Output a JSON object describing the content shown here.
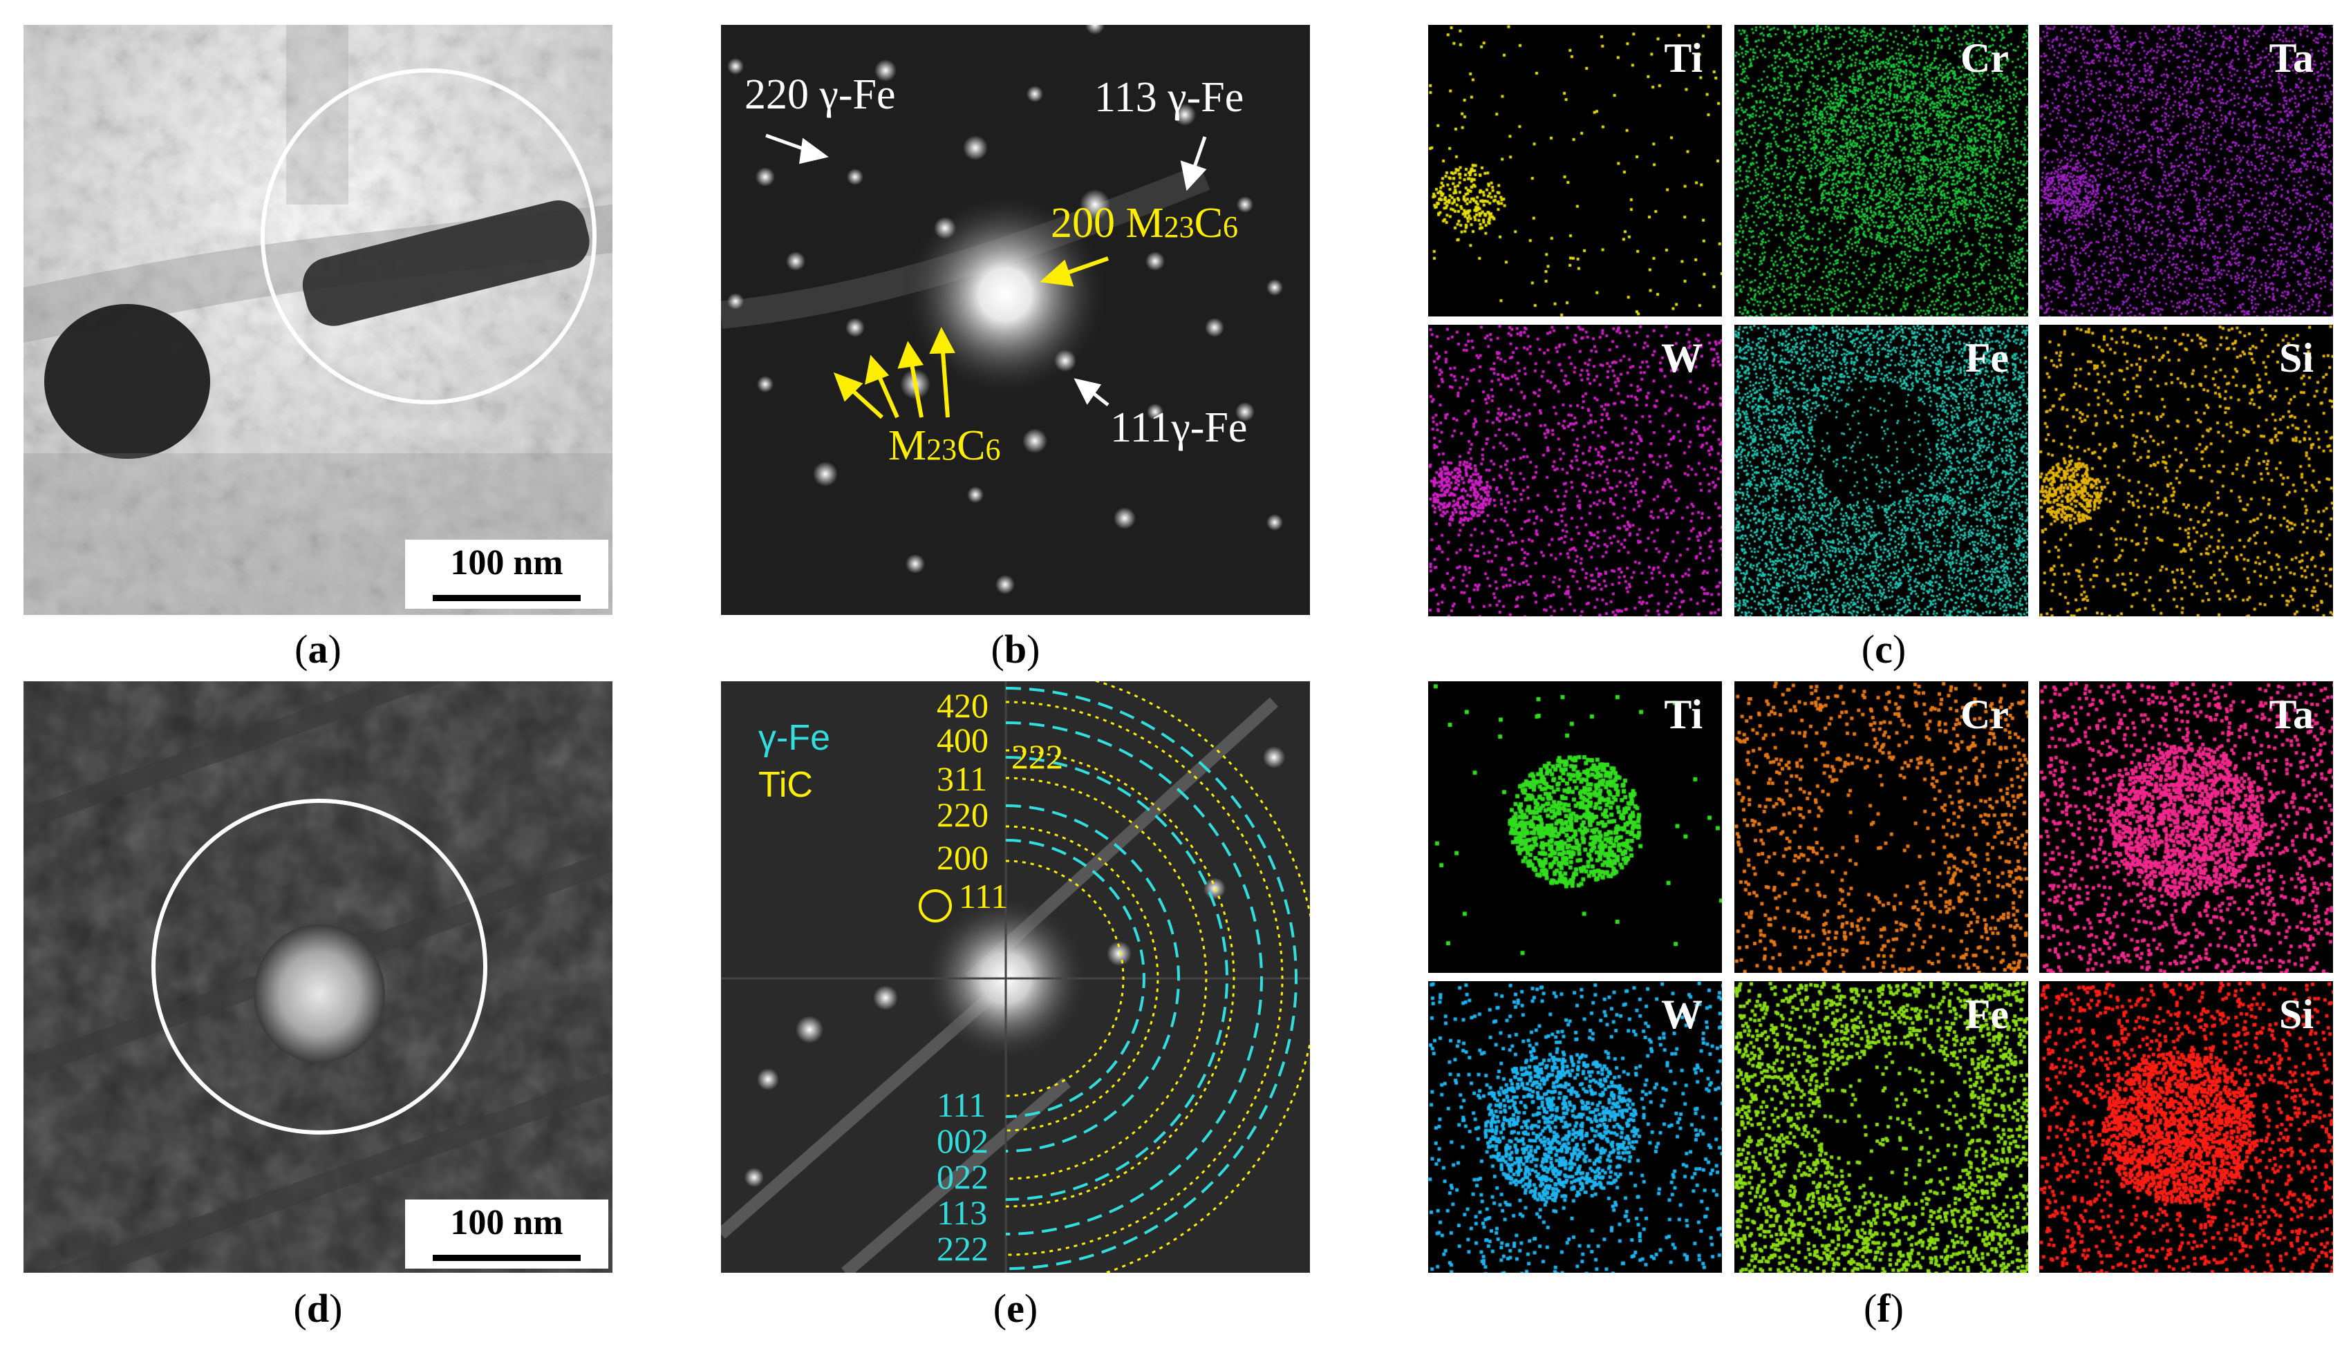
{
  "panels": {
    "a": {
      "caption": "a",
      "scale_bar": "100 nm"
    },
    "b": {
      "caption": "b",
      "labels": {
        "l220": "220 γ-Fe",
        "l113": "113 γ-Fe",
        "l200": "200",
        "l200m": "M",
        "l200s": "23",
        "l200c": "C",
        "l200s2": "6",
        "l111": "111γ-Fe",
        "lmm": "M",
        "lms": "23",
        "lmc": "C",
        "lms2": "6"
      }
    },
    "c": {
      "caption": "c",
      "maps": [
        {
          "element": "Ti",
          "color": "#e8e000"
        },
        {
          "element": "Cr",
          "color": "#19c83c"
        },
        {
          "element": "Ta",
          "color": "#a020c8"
        },
        {
          "element": "W",
          "color": "#d21ec8"
        },
        {
          "element": "Fe",
          "color": "#1ec8b4"
        },
        {
          "element": "Si",
          "color": "#e6b400"
        }
      ]
    },
    "d": {
      "caption": "d",
      "scale_bar": "100 nm"
    },
    "e": {
      "caption": "e",
      "legend": {
        "gamma_fe": "γ-Fe",
        "tic": "TiC"
      },
      "tic_rings": [
        "420",
        "400",
        "311",
        "220",
        "200",
        "111"
      ],
      "tic_extra": "222",
      "gamma_rings": [
        "111",
        "002",
        "022",
        "113",
        "222"
      ]
    },
    "f": {
      "caption": "f",
      "maps": [
        {
          "element": "Ti",
          "color": "#32dc1e"
        },
        {
          "element": "Cr",
          "color": "#e67814"
        },
        {
          "element": "Ta",
          "color": "#f0288c"
        },
        {
          "element": "W",
          "color": "#1eb4f0"
        },
        {
          "element": "Fe",
          "color": "#8cdc14"
        },
        {
          "element": "Si",
          "color": "#ff1e14"
        }
      ]
    }
  },
  "colors": {
    "yellow": "#ffee00",
    "cyan": "#33dddd",
    "white": "#ffffff"
  }
}
